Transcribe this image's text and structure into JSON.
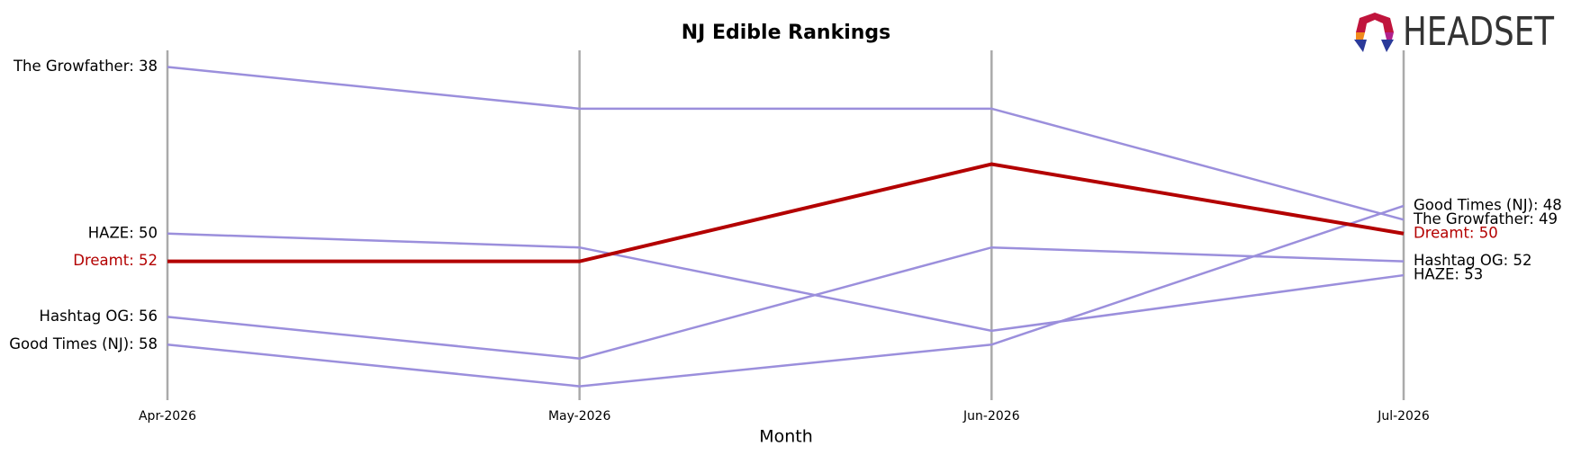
{
  "chart_data": {
    "type": "bump",
    "title": "NJ Edible Rankings",
    "x_label": "Month",
    "logo": "HEADSET",
    "categories": [
      "Apr-2026",
      "May-2026",
      "Jun-2026",
      "Jul-2026"
    ],
    "ylim": [
      36.8,
      62
    ],
    "inverted": true,
    "series": [
      {
        "color": "#9b8fdc",
        "values": [
          38,
          41,
          41,
          49
        ],
        "value_labels": [
          "The Growfather: 38",
          null,
          null,
          "The Growfather: 49"
        ]
      },
      {
        "color": "#9b8fdc",
        "values": [
          50,
          51,
          57,
          53
        ],
        "value_labels": [
          "HAZE: 50",
          null,
          null,
          "HAZE: 53"
        ]
      },
      {
        "color": "#b30000",
        "highlight": true,
        "values": [
          52,
          52,
          45,
          50
        ],
        "value_labels": [
          "Dreamt: 52",
          null,
          null,
          "Dreamt: 50"
        ]
      },
      {
        "color": "#9b8fdc",
        "values": [
          56,
          59,
          51,
          52
        ],
        "value_labels": [
          "Hashtag OG: 56",
          null,
          null,
          "Hashtag OG: 52"
        ]
      },
      {
        "color": "#9b8fdc",
        "values": [
          58,
          61,
          58,
          48
        ],
        "value_labels": [
          "Good Times (NJ): 58",
          null,
          null,
          "Good Times (NJ): 48"
        ]
      }
    ]
  }
}
